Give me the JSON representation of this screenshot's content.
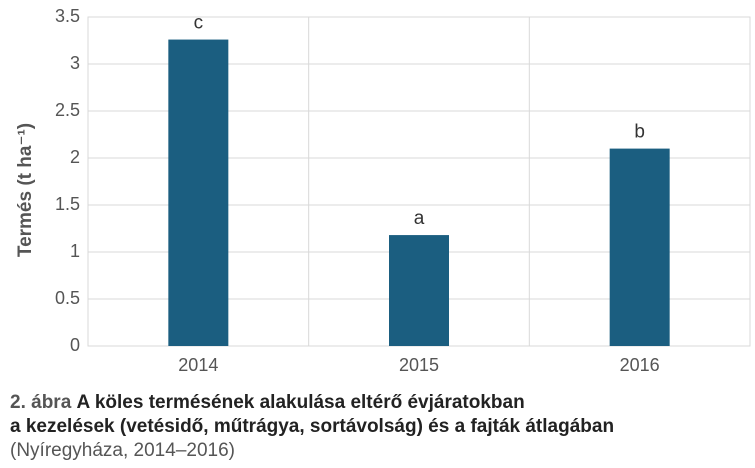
{
  "chart_data": {
    "type": "bar",
    "categories": [
      "2014",
      "2015",
      "2016"
    ],
    "values": [
      3.26,
      1.18,
      2.1
    ],
    "significance_labels": [
      "c",
      "a",
      "b"
    ],
    "xlabel": "",
    "ylabel": "Termés (t ha⁻¹)",
    "ylim": [
      0,
      3.5
    ],
    "yticks": [
      "0",
      "0.5",
      "1",
      "1.5",
      "2",
      "2.5",
      "3",
      "3.5"
    ],
    "grid": true,
    "bar_color": "#1b5e80",
    "grid_color": "#d9d9d9"
  },
  "caption": {
    "number": "2. ábra",
    "title_line1": "A köles termésének alakulása eltérő évjáratokban",
    "title_line2": "a kezelések (vetésidő, műtrágya, sortávolság) és a fajták átlagában",
    "line3": "(Nyíregyháza, 2014–2016)"
  }
}
